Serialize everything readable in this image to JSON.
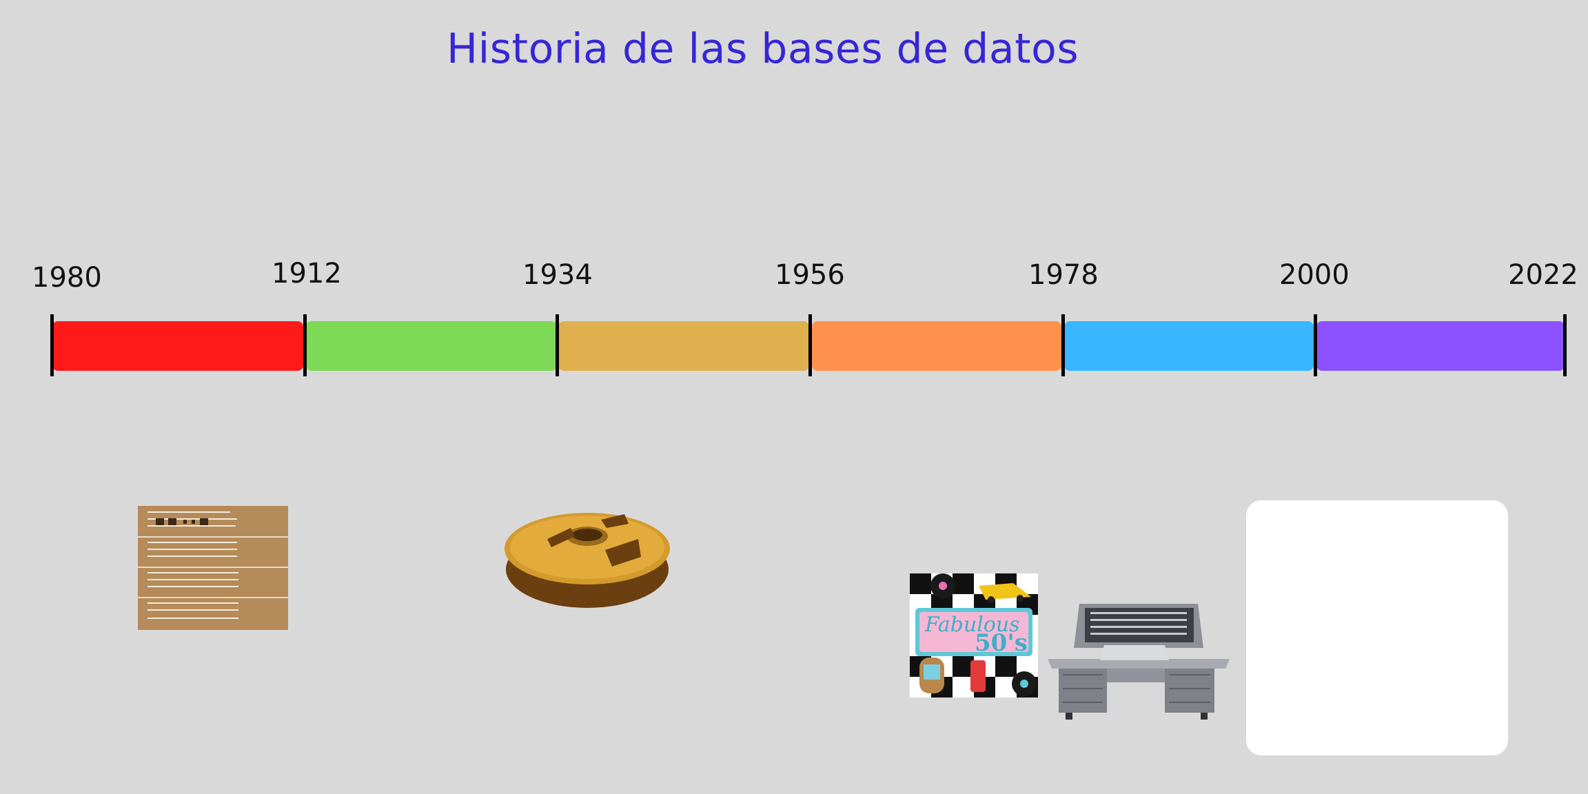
{
  "title": "Historia de las bases de datos",
  "timeline": {
    "years": [
      "1980",
      "1912",
      "1934",
      "1956",
      "1978",
      "2000",
      "2022"
    ],
    "segments": [
      {
        "color": "#ff1a1a"
      },
      {
        "color": "#7ed957"
      },
      {
        "color": "#e0b04f"
      },
      {
        "color": "#ff914d"
      },
      {
        "color": "#38b6ff"
      },
      {
        "color": "#8c52ff"
      }
    ]
  },
  "images": {
    "punch_card": {
      "icon": "punch-card-icon"
    },
    "tape_reel": {
      "icon": "tape-reel-icon"
    },
    "poster": {
      "text_top": "Fabulous",
      "text_big": "50's"
    },
    "computer": {
      "icon": "mainframe-console-icon"
    }
  }
}
